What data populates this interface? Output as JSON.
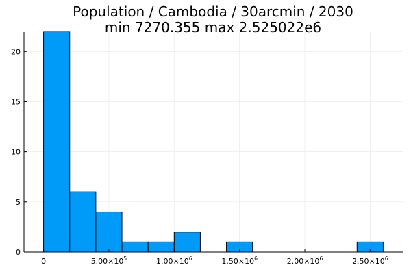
{
  "chart_data": {
    "type": "bar",
    "title_line1": "Population / Cambodia / 30arcmin / 2030",
    "title_line2": "min 7270.355  max 2.525022e6",
    "bin_width": 200000,
    "bins": [
      {
        "start": 0,
        "end": 200000,
        "count": 22
      },
      {
        "start": 200000,
        "end": 400000,
        "count": 6
      },
      {
        "start": 400000,
        "end": 600000,
        "count": 4
      },
      {
        "start": 600000,
        "end": 800000,
        "count": 1
      },
      {
        "start": 800000,
        "end": 1000000,
        "count": 1
      },
      {
        "start": 1000000,
        "end": 1200000,
        "count": 2
      },
      {
        "start": 1200000,
        "end": 1400000,
        "count": 0
      },
      {
        "start": 1400000,
        "end": 1600000,
        "count": 1
      },
      {
        "start": 1600000,
        "end": 1800000,
        "count": 0
      },
      {
        "start": 1800000,
        "end": 2000000,
        "count": 0
      },
      {
        "start": 2000000,
        "end": 2200000,
        "count": 0
      },
      {
        "start": 2200000,
        "end": 2400000,
        "count": 0
      },
      {
        "start": 2400000,
        "end": 2600000,
        "count": 1
      }
    ],
    "xlim": [
      -150000,
      2750000
    ],
    "ylim": [
      0,
      22
    ],
    "x_ticks": [
      {
        "value": 0,
        "label": "0",
        "sup": ""
      },
      {
        "value": 500000,
        "label": "5.00×10",
        "sup": "5"
      },
      {
        "value": 1000000,
        "label": "1.00×10",
        "sup": "6"
      },
      {
        "value": 1500000,
        "label": "1.50×10",
        "sup": "6"
      },
      {
        "value": 2000000,
        "label": "2.00×10",
        "sup": "6"
      },
      {
        "value": 2500000,
        "label": "2.50×10",
        "sup": "6"
      }
    ],
    "y_ticks": [
      {
        "value": 0,
        "label": "0"
      },
      {
        "value": 5,
        "label": "5"
      },
      {
        "value": 10,
        "label": "10"
      },
      {
        "value": 15,
        "label": "15"
      },
      {
        "value": 20,
        "label": "20"
      }
    ],
    "grid": true,
    "legend": "none",
    "bar_color": "#009AF9",
    "bar_stroke": "#000000",
    "grid_color": "#EBEBEB"
  }
}
